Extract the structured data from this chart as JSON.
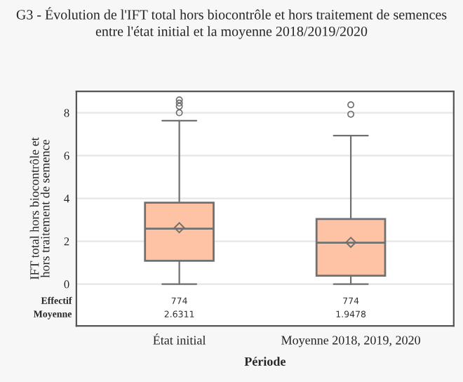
{
  "chart_data": {
    "type": "box",
    "title": "G3 - Évolution de l'IFT total hors biocontrôle et hors traitement de semences entre l'état initial et la moyenne 2018/2019/2020",
    "xlabel": "Période",
    "ylabel": "IFT total hors biocontrôle et\nhors traitement de semence",
    "categories": [
      "État initial",
      "Moyenne 2018, 2019, 2020"
    ],
    "boxes": [
      {
        "low": 0,
        "q1": 1.09,
        "median": 2.59,
        "q3": 3.8,
        "high": 7.63,
        "mean": 2.6311,
        "outliers": [
          8.0,
          8.3,
          8.45,
          8.6
        ]
      },
      {
        "low": 0,
        "q1": 0.39,
        "median": 1.93,
        "q3": 3.04,
        "high": 6.93,
        "mean": 1.9478,
        "outliers": [
          7.93,
          8.37
        ]
      }
    ],
    "color": "#fdc3a4",
    "ylim": [
      -1.95,
      9
    ],
    "yticks": [
      0,
      2,
      4,
      6,
      8
    ],
    "grid": "y",
    "annotations": [
      "Effectif",
      "Moyenne",
      "774",
      "2.6311",
      "774",
      "1.9478"
    ]
  }
}
